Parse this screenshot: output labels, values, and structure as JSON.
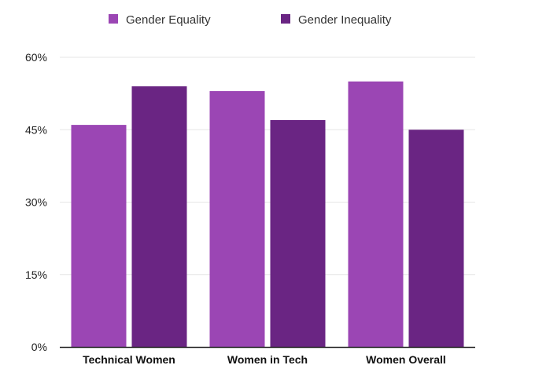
{
  "chart_data": {
    "type": "bar",
    "categories": [
      "Technical Women",
      "Women in Tech",
      "Women Overall"
    ],
    "series": [
      {
        "name": "Gender Equality",
        "values": [
          46,
          53,
          55
        ],
        "color": "#9b46b4"
      },
      {
        "name": "Gender Inequality",
        "values": [
          54,
          47,
          45
        ],
        "color": "#6a2583"
      }
    ],
    "y_ticks": [
      0,
      15,
      30,
      45,
      60
    ],
    "y_tick_labels": [
      "0%",
      "15%",
      "30%",
      "45%",
      "60%"
    ],
    "ylim": [
      0,
      60
    ],
    "grid": true,
    "legend_position": "top"
  }
}
